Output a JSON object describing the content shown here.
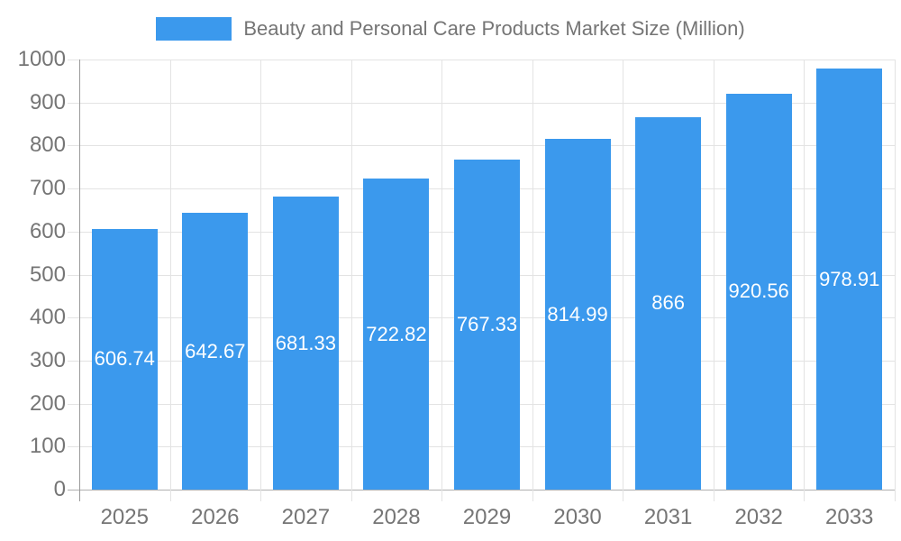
{
  "chart_data": {
    "type": "bar",
    "title": "Beauty and Personal Care Products Market Size (Million)",
    "categories": [
      "2025",
      "2026",
      "2027",
      "2028",
      "2029",
      "2030",
      "2031",
      "2032",
      "2033"
    ],
    "values": [
      606.74,
      642.67,
      681.33,
      722.82,
      767.33,
      814.99,
      866,
      920.56,
      978.91
    ],
    "value_labels": [
      "606.74",
      "642.67",
      "681.33",
      "722.82",
      "767.33",
      "814.99",
      "866",
      "920.56",
      "978.91"
    ],
    "xlabel": "",
    "ylabel": "",
    "ylim": [
      0,
      1000
    ],
    "ytick_step": 100,
    "grid": true,
    "legend_position": "top-center",
    "value_label_position": "center-inside-bar",
    "colors": {
      "bar": "#3B99ED",
      "text": "#757575",
      "grid": "#E3E3E3",
      "axis_y": "#999999",
      "axis_x": "#B0B0B0",
      "value_label": "#FFFFFF"
    }
  }
}
